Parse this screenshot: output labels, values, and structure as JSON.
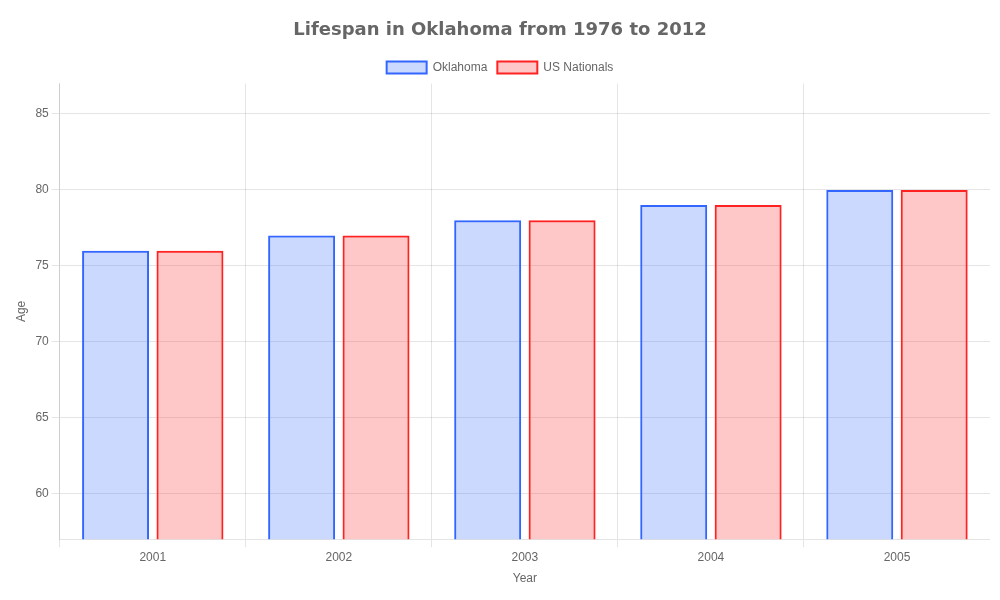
{
  "chart_data": {
    "type": "bar",
    "title": "Lifespan in Oklahoma from 1976 to 2012",
    "x_label": "Year",
    "y_label": "Age",
    "categories": [
      "2001",
      "2002",
      "2003",
      "2004",
      "2005"
    ],
    "series": [
      {
        "name": "Oklahoma",
        "color": "#3366ff",
        "values": [
          76,
          77,
          78,
          79,
          80
        ]
      },
      {
        "name": "US Nationals",
        "color": "#ff2222",
        "values": [
          76,
          77,
          78,
          79,
          80
        ]
      }
    ],
    "ylim": [
      57,
      87
    ],
    "yticks": [
      60,
      65,
      70,
      75,
      80,
      85
    ],
    "grid": true,
    "legend": "top"
  }
}
